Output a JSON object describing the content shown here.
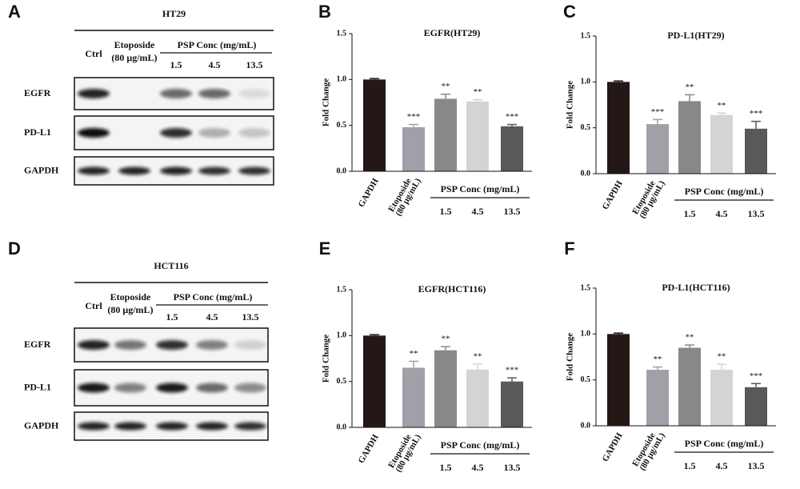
{
  "panel_labels": [
    "A",
    "B",
    "C",
    "D",
    "E",
    "F"
  ],
  "blots": [
    {
      "title": "HT29",
      "ctrl": "Ctrl",
      "etoposide": [
        "Etoposide",
        "(80 μg/mL)"
      ],
      "group_label": "PSP Conc (mg/mL)",
      "concentrations": [
        "1.5",
        "4.5",
        "13.5"
      ],
      "rows": [
        "EGFR",
        "PD-L1",
        "GAPDH"
      ]
    },
    {
      "title": "HCT116",
      "ctrl": "Ctrl",
      "etoposide": [
        "Etoposide",
        "(80 μg/mL)"
      ],
      "group_label": "PSP Conc (mg/mL)",
      "concentrations": [
        "1.5",
        "4.5",
        "13.5"
      ],
      "rows": [
        "EGFR",
        "PD-L1",
        "GAPDH"
      ]
    }
  ],
  "chart_data": [
    {
      "type": "bar",
      "title": "EGFR(HT29)",
      "y_label": "Fold Change",
      "categories": [
        "GAPDH",
        [
          "Etoposide",
          "(80 μg/mL)"
        ],
        "1.5",
        "4.5",
        "13.5"
      ],
      "group_label": "PSP Conc (mg/mL)",
      "values": [
        1.0,
        0.48,
        0.79,
        0.76,
        0.49
      ],
      "errors": [
        0.01,
        0.03,
        0.05,
        0.02,
        0.02
      ],
      "annotations": [
        null,
        "***",
        "**",
        "**",
        "***"
      ],
      "colors": [
        "#231815",
        "#a0a0a8",
        "#888888",
        "#d4d4d4",
        "#595959"
      ],
      "ylim": [
        0,
        1.5
      ],
      "yticks": [
        {
          "value": 0,
          "label": "0.0"
        },
        {
          "value": 0.5,
          "label": "0.5"
        },
        {
          "value": 1,
          "label": "1.0"
        },
        {
          "value": 1.5,
          "label": "1.5"
        }
      ]
    },
    {
      "type": "bar",
      "title": "PD-L1(HT29)",
      "y_label": "Fold Change",
      "categories": [
        "GAPDH",
        [
          "Etoposide",
          "(80 μg/mL)"
        ],
        "1.5",
        "4.5",
        "13.5"
      ],
      "group_label": "PSP Conc (mg/mL)",
      "values": [
        1.0,
        0.54,
        0.79,
        0.64,
        0.49
      ],
      "errors": [
        0.01,
        0.05,
        0.07,
        0.02,
        0.08
      ],
      "annotations": [
        null,
        "***",
        "**",
        "**",
        "***"
      ],
      "colors": [
        "#231815",
        "#a0a0a8",
        "#888888",
        "#d4d4d4",
        "#595959"
      ],
      "ylim": [
        0,
        1.5
      ],
      "yticks": [
        {
          "value": 0,
          "label": "0.0"
        },
        {
          "value": 0.5,
          "label": "0.5"
        },
        {
          "value": 1,
          "label": "1.0"
        },
        {
          "value": 1.5,
          "label": "1.5"
        }
      ]
    },
    {
      "type": "bar",
      "title": "EGFR(HCT116)",
      "y_label": "Fold Change",
      "categories": [
        "GAPDH",
        [
          "Etoposide",
          "(80 μg/mL)"
        ],
        "1.5",
        "4.5",
        "13.5"
      ],
      "group_label": "PSP Conc (mg/mL)",
      "values": [
        1.0,
        0.65,
        0.84,
        0.63,
        0.5
      ],
      "errors": [
        0.01,
        0.07,
        0.04,
        0.06,
        0.04
      ],
      "annotations": [
        null,
        "**",
        "**",
        "**",
        "***"
      ],
      "colors": [
        "#231815",
        "#a0a0a8",
        "#888888",
        "#d4d4d4",
        "#595959"
      ],
      "ylim": [
        0,
        1.5
      ],
      "yticks": [
        {
          "value": 0,
          "label": "0.0"
        },
        {
          "value": 0.5,
          "label": "0.5"
        },
        {
          "value": 1,
          "label": "1.0"
        },
        {
          "value": 1.5,
          "label": "1.5"
        }
      ]
    },
    {
      "type": "bar",
      "title": "PD-L1(HCT116)",
      "y_label": "Fold Change",
      "categories": [
        "GAPDH",
        [
          "Etoposide",
          "(80 μg/mL)"
        ],
        "1.5",
        "4.5",
        "13.5"
      ],
      "group_label": "PSP Conc (mg/mL)",
      "values": [
        1.0,
        0.61,
        0.85,
        0.61,
        0.42
      ],
      "errors": [
        0.01,
        0.03,
        0.03,
        0.06,
        0.04
      ],
      "annotations": [
        null,
        "**",
        "**",
        "**",
        "***"
      ],
      "colors": [
        "#231815",
        "#a0a0a8",
        "#888888",
        "#d4d4d4",
        "#595959"
      ],
      "ylim": [
        0,
        1.5
      ],
      "yticks": [
        {
          "value": 0,
          "label": "0.0"
        },
        {
          "value": 0.5,
          "label": "0.5"
        },
        {
          "value": 1,
          "label": "1.0"
        },
        {
          "value": 1.5,
          "label": "1.5"
        }
      ]
    }
  ]
}
